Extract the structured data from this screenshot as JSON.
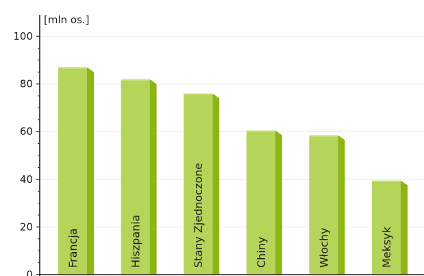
{
  "chart_data": {
    "type": "bar",
    "ylabel": "[mln os.]",
    "categories": [
      "Francja",
      "Hiszpania",
      "Stany Zjednoczone",
      "Chiny",
      "Włochy",
      "Meksyk"
    ],
    "values": [
      87,
      82,
      76,
      60.5,
      58.5,
      39.5
    ],
    "ylim": [
      0,
      100
    ],
    "yticks": [
      "0",
      "20",
      "40",
      "60",
      "80",
      "100"
    ],
    "grid": true,
    "colors": {
      "bar_front": "#b5d45a",
      "bar_side": "#8cb515",
      "bar_top": "#cfe38a",
      "grid": "#e4e4e4",
      "axis": "#222222"
    }
  }
}
